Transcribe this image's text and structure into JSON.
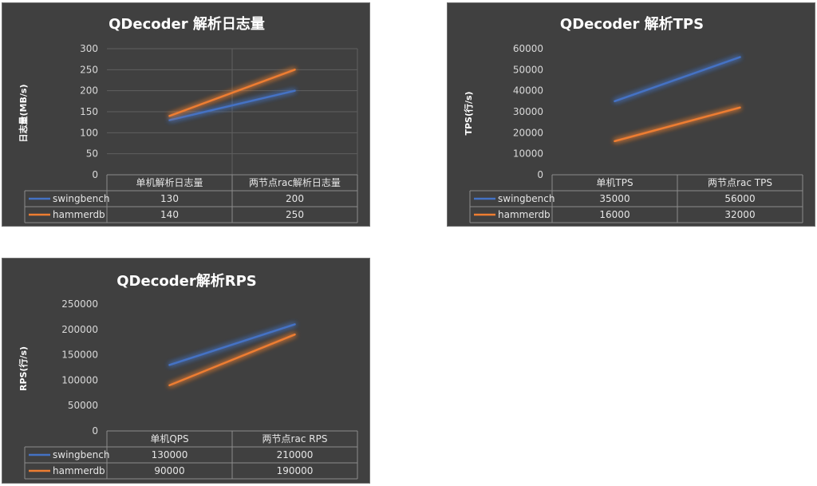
{
  "chart_data": [
    {
      "type": "line",
      "title": "QDecoder 解析日志量",
      "ylabel": "日志量(MB/s)",
      "xlabel": "",
      "categories": [
        "单机解析日志量",
        "两节点rac解析日志量"
      ],
      "series": [
        {
          "name": "swingbench",
          "values": [
            130,
            200
          ],
          "color": "#4472c4"
        },
        {
          "name": "hammerdb",
          "values": [
            140,
            250
          ],
          "color": "#ed7d31"
        }
      ],
      "ylim": [
        0,
        300
      ],
      "yticks": [
        0,
        50,
        100,
        150,
        200,
        250,
        300
      ],
      "ytick_labels": [
        "0",
        "50",
        "100",
        "150",
        "200",
        "250",
        "300"
      ],
      "grid": true,
      "legend": "data-table",
      "table_values": [
        [
          "130",
          "200"
        ],
        [
          "140",
          "250"
        ]
      ]
    },
    {
      "type": "line",
      "title": "QDecoder 解析TPS",
      "ylabel": "TPS(行/s)",
      "xlabel": "",
      "categories": [
        "单机TPS",
        "两节点rac TPS"
      ],
      "series": [
        {
          "name": "swingbench",
          "values": [
            35000,
            56000
          ],
          "color": "#4472c4"
        },
        {
          "name": "hammerdb",
          "values": [
            16000,
            32000
          ],
          "color": "#ed7d31"
        }
      ],
      "ylim": [
        0,
        60000
      ],
      "yticks": [
        0,
        10000,
        20000,
        30000,
        40000,
        50000,
        60000
      ],
      "ytick_labels": [
        "0",
        "10000",
        "20000",
        "30000",
        "40000",
        "50000",
        "60000"
      ],
      "grid": false,
      "legend": "data-table",
      "table_values": [
        [
          "35000",
          "56000"
        ],
        [
          "16000",
          "32000"
        ]
      ]
    },
    {
      "type": "line",
      "title": "QDecoder解析RPS",
      "ylabel": "RPS(行/s)",
      "xlabel": "",
      "categories": [
        "单机QPS",
        "两节点rac RPS"
      ],
      "series": [
        {
          "name": "swingbench",
          "values": [
            130000,
            210000
          ],
          "color": "#4472c4"
        },
        {
          "name": "hammerdb",
          "values": [
            90000,
            190000
          ],
          "color": "#ed7d31"
        }
      ],
      "ylim": [
        0,
        250000
      ],
      "yticks": [
        0,
        50000,
        100000,
        150000,
        200000,
        250000
      ],
      "ytick_labels": [
        "0",
        "50000",
        "100000",
        "150000",
        "200000",
        "250000"
      ],
      "grid": false,
      "legend": "data-table",
      "table_values": [
        [
          "130000",
          "210000"
        ],
        [
          "90000",
          "190000"
        ]
      ]
    }
  ]
}
